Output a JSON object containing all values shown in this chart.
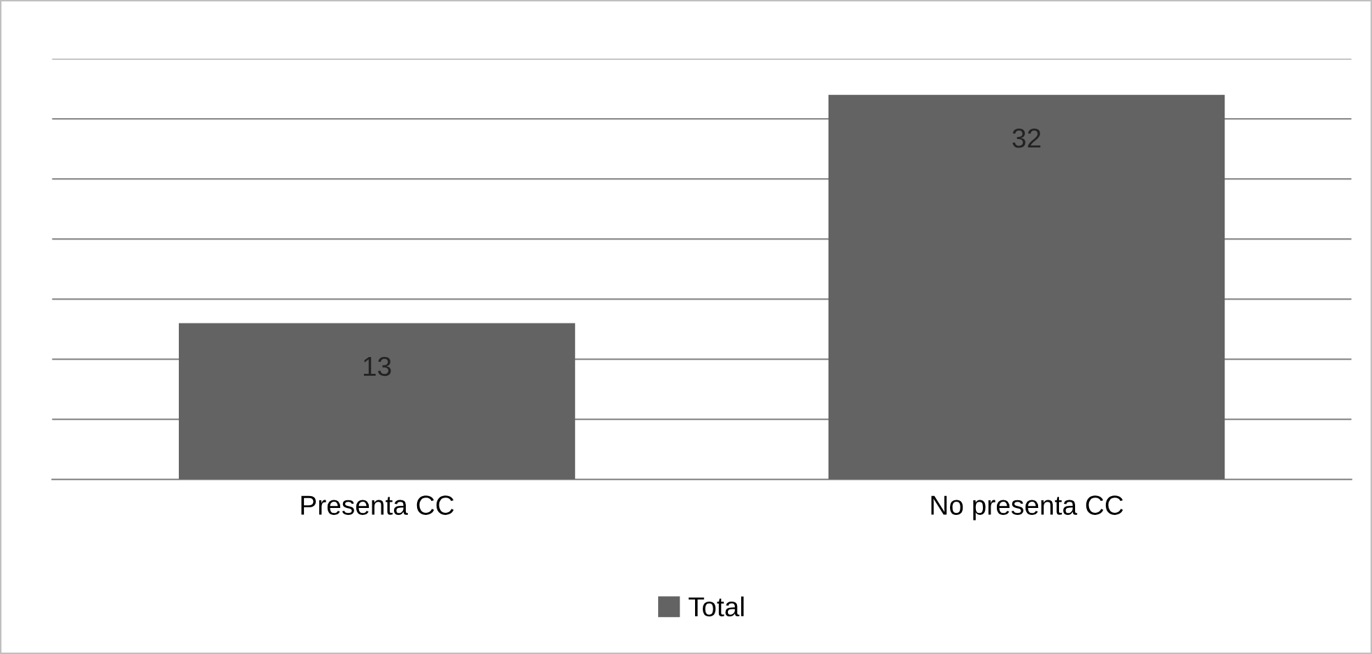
{
  "chart_data": {
    "type": "bar",
    "categories": [
      "Presenta CC",
      "No presenta CC"
    ],
    "series": [
      {
        "name": "Total",
        "color": "#636363",
        "values": [
          13,
          32
        ]
      }
    ],
    "ylim": [
      0,
      35
    ],
    "yticks": [
      {
        "value": 0,
        "label": null
      },
      {
        "value": 5,
        "label": null
      },
      {
        "value": 10,
        "label": null
      },
      {
        "value": 15,
        "label": null
      },
      {
        "value": 20,
        "label": null
      },
      {
        "value": 25,
        "label": null
      },
      {
        "value": 30,
        "label": null
      },
      {
        "value": 35,
        "label": null
      }
    ],
    "tick_labels": "x",
    "grid": "y",
    "legend": "bottom",
    "data_labels": true
  }
}
